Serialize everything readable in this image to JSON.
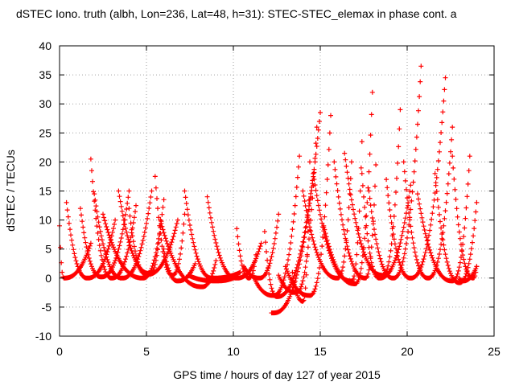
{
  "chart_data": {
    "type": "scatter",
    "title": "dSTEC Iono. truth (albh, Lon=236, Lat=48, h=31): STEC-STEC_elemax in phase cont. a",
    "xlabel": "GPS time / hours of day 127 of year 2015",
    "ylabel": "dSTEC  / TECUs",
    "xlim": [
      0,
      25
    ],
    "ylim": [
      -10,
      40
    ],
    "x_ticks": [
      0,
      5,
      10,
      15,
      20,
      25
    ],
    "y_ticks": [
      -10,
      -5,
      0,
      5,
      10,
      15,
      20,
      25,
      30,
      35,
      40
    ],
    "grid": true,
    "marker": "+",
    "color": "#ff0000",
    "arcs": [
      {
        "start": 0.0,
        "min_x": 0.25,
        "min_y": 0.0,
        "end": 1.8,
        "start_y": 9.0,
        "end_y": 6.0
      },
      {
        "start": 0.4,
        "min_x": 1.6,
        "min_y": 0.0,
        "end": 3.2,
        "start_y": 13.0,
        "end_y": 10.0
      },
      {
        "start": 1.2,
        "min_x": 2.4,
        "min_y": 0.2,
        "end": 4.0,
        "start_y": 12.0,
        "end_y": 15.0
      },
      {
        "start": 1.8,
        "min_x": 3.0,
        "min_y": 0.0,
        "end": 4.4,
        "start_y": 20.5,
        "end_y": 12.5
      },
      {
        "start": 2.0,
        "min_x": 3.6,
        "min_y": 0.0,
        "end": 5.3,
        "start_y": 14.5,
        "end_y": 15.0
      },
      {
        "start": 2.5,
        "min_x": 4.8,
        "min_y": 0.0,
        "end": 6.0,
        "start_y": 11.0,
        "end_y": 13.5
      },
      {
        "start": 3.4,
        "min_x": 5.2,
        "min_y": 0.8,
        "end": 5.8,
        "start_y": 15.0,
        "end_y": 9.0
      },
      {
        "start": 4.0,
        "min_x": 5.0,
        "min_y": 0.6,
        "end": 6.8,
        "start_y": 12.0,
        "end_y": 10.0
      },
      {
        "start": 5.5,
        "min_x": 6.5,
        "min_y": 0.5,
        "end": 7.2,
        "start_y": 17.5,
        "end_y": 11.0
      },
      {
        "start": 5.8,
        "min_x": 8.2,
        "min_y": -1.5,
        "end": 9.0,
        "start_y": 10.0,
        "end_y": 3.0
      },
      {
        "start": 6.0,
        "min_x": 6.8,
        "min_y": -0.5,
        "end": 7.8,
        "start_y": 5.0,
        "end_y": 2.5
      },
      {
        "start": 7.2,
        "min_x": 8.8,
        "min_y": 0.0,
        "end": 10.4,
        "start_y": 15.0,
        "end_y": 1.0
      },
      {
        "start": 7.4,
        "min_x": 9.0,
        "min_y": -0.5,
        "end": 10.0,
        "start_y": 0.5,
        "end_y": 0.0
      },
      {
        "start": 8.5,
        "min_x": 10.2,
        "min_y": 0.0,
        "end": 11.6,
        "start_y": 14.0,
        "end_y": 6.0
      },
      {
        "start": 10.2,
        "min_x": 10.9,
        "min_y": 0.0,
        "end": 11.3,
        "start_y": 8.5,
        "end_y": 4.0
      },
      {
        "start": 10.6,
        "min_x": 11.5,
        "min_y": 0.0,
        "end": 12.6,
        "start_y": 2.0,
        "end_y": 11.0
      },
      {
        "start": 11.2,
        "min_x": 12.3,
        "min_y": -3.0,
        "end": 13.8,
        "start_y": 0.0,
        "end_y": 21.0
      },
      {
        "start": 11.8,
        "min_x": 12.5,
        "min_y": -3.2,
        "end": 14.6,
        "start_y": 8.0,
        "end_y": 18.0
      },
      {
        "start": 12.2,
        "min_x": 12.3,
        "min_y": -6.0,
        "end": 15.0,
        "start_y": -6.0,
        "end_y": 28.5
      },
      {
        "start": 12.6,
        "min_x": 13.6,
        "min_y": -2.5,
        "end": 14.8,
        "start_y": 0.5,
        "end_y": 26.0
      },
      {
        "start": 13.0,
        "min_x": 14.4,
        "min_y": -3.0,
        "end": 15.6,
        "start_y": 2.0,
        "end_y": 28.0
      },
      {
        "start": 13.4,
        "min_x": 14.0,
        "min_y": -4.0,
        "end": 14.4,
        "start_y": 1.0,
        "end_y": 20.0
      },
      {
        "start": 14.0,
        "min_x": 16.0,
        "min_y": 0.0,
        "end": 16.8,
        "start_y": 15.0,
        "end_y": 20.0
      },
      {
        "start": 14.6,
        "min_x": 16.8,
        "min_y": -0.5,
        "end": 17.4,
        "start_y": 18.0,
        "end_y": 23.5
      },
      {
        "start": 15.2,
        "min_x": 17.0,
        "min_y": -1.0,
        "end": 18.0,
        "start_y": 9.0,
        "end_y": 32.0
      },
      {
        "start": 15.8,
        "min_x": 17.6,
        "min_y": 0.0,
        "end": 18.2,
        "start_y": 20.0,
        "end_y": 19.5
      },
      {
        "start": 16.4,
        "min_x": 18.6,
        "min_y": 0.5,
        "end": 19.6,
        "start_y": 21.5,
        "end_y": 29.0
      },
      {
        "start": 17.4,
        "min_x": 18.4,
        "min_y": 0.0,
        "end": 20.2,
        "start_y": 18.0,
        "end_y": 16.0
      },
      {
        "start": 17.8,
        "min_x": 19.2,
        "min_y": 0.0,
        "end": 20.8,
        "start_y": 15.0,
        "end_y": 36.5
      },
      {
        "start": 18.8,
        "min_x": 20.2,
        "min_y": 0.0,
        "end": 22.2,
        "start_y": 17.0,
        "end_y": 34.5
      },
      {
        "start": 19.8,
        "min_x": 21.2,
        "min_y": 0.0,
        "end": 22.6,
        "start_y": 20.0,
        "end_y": 26.0
      },
      {
        "start": 20.6,
        "min_x": 22.6,
        "min_y": -0.5,
        "end": 23.6,
        "start_y": 14.5,
        "end_y": 21.0
      },
      {
        "start": 21.6,
        "min_x": 23.0,
        "min_y": -0.8,
        "end": 24.0,
        "start_y": 18.0,
        "end_y": 13.0
      },
      {
        "start": 22.6,
        "min_x": 23.8,
        "min_y": 0.0,
        "end": 24.0,
        "start_y": 21.0,
        "end_y": 2.0
      },
      {
        "start": 23.0,
        "min_x": 23.2,
        "min_y": -0.5,
        "end": 24.0,
        "start_y": 0.0,
        "end_y": 2.0
      }
    ]
  }
}
